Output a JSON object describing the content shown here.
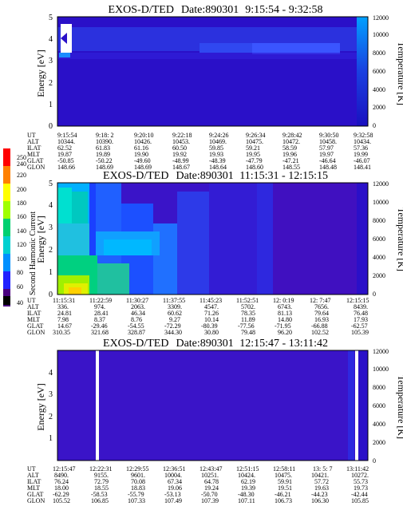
{
  "colors": {
    "scale": [
      "#000000",
      "#4a0080",
      "#2020ff",
      "#00a0ff",
      "#00e0e0",
      "#00d070",
      "#a0ff00",
      "#ffff00",
      "#ffa000",
      "#ff0000"
    ],
    "background_fill": "#2a10c8"
  },
  "colorbar": {
    "label": "Second Harmonic Current",
    "ticks": [
      "40",
      "60",
      "80",
      "100",
      "120",
      "140",
      "160",
      "180",
      "200",
      "220",
      "240",
      "250"
    ]
  },
  "chart_data": [
    {
      "type": "heatmap",
      "title": "EXOS-D/TED",
      "date_label": "Date:890301",
      "time_range": "9:15:54 - 9:32:58",
      "ylabel": "Energy [eV]",
      "ylabel_right": "Temperature [K]",
      "ylim": [
        0,
        5
      ],
      "yticks": [
        "0",
        "1",
        "2",
        "3",
        "4",
        "5"
      ],
      "y2lim": [
        0,
        12000
      ],
      "y2ticks": [
        "0",
        "2000",
        "4000",
        "6000",
        "8000",
        "10000",
        "12000"
      ],
      "row_labels": [
        "UT",
        "ALT",
        "ILAT",
        "MLT",
        "GLAT",
        "GLON"
      ],
      "columns": [
        [
          "9:15:54",
          "10344.",
          "62.52",
          "19.87",
          "-50.85",
          "148.66"
        ],
        [
          "9:18: 2",
          "10390.",
          "61.83",
          "19.89",
          "-50.22",
          "148.69"
        ],
        [
          "9:20:10",
          "10426.",
          "61.16",
          "19.90",
          "-49.60",
          "148.69"
        ],
        [
          "9:22:18",
          "10453.",
          "60.50",
          "19.92",
          "-48.99",
          "148.67"
        ],
        [
          "9:24:26",
          "10469.",
          "59.85",
          "19.93",
          "-48.39",
          "148.64"
        ],
        [
          "9:26:34",
          "10475.",
          "59.21",
          "19.95",
          "-47.79",
          "148.60"
        ],
        [
          "9:28:42",
          "10472.",
          "58.59",
          "19.96",
          "-47.21",
          "148.55"
        ],
        [
          "9:30:50",
          "10458.",
          "57.97",
          "19.97",
          "-46.64",
          "148.48"
        ],
        [
          "9:32:58",
          "10434.",
          "57.36",
          "19.99",
          "-46.07",
          "148.41"
        ]
      ]
    },
    {
      "type": "heatmap",
      "title": "EXOS-D/TED",
      "date_label": "Date:890301",
      "time_range": "11:15:31 - 12:15:15",
      "ylabel": "Energy [eV]",
      "ylabel_right": "Temperature [K]",
      "ylim": [
        0,
        5
      ],
      "yticks": [
        "0",
        "1",
        "2",
        "3",
        "4",
        "5"
      ],
      "y2lim": [
        0,
        12000
      ],
      "y2ticks": [
        "0",
        "2000",
        "4000",
        "6000",
        "8000",
        "10000",
        "12000"
      ],
      "row_labels": [
        "UT",
        "ALT",
        "ILAT",
        "MLT",
        "GLAT",
        "GLON"
      ],
      "columns": [
        [
          "11:15:31",
          "336.",
          "24.81",
          "7.98",
          "14.67",
          "310.35"
        ],
        [
          "11:22:59",
          "974.",
          "28.41",
          "8.37",
          "-29.46",
          "321.68"
        ],
        [
          "11:30:27",
          "2063.",
          "46.34",
          "8.76",
          "-54.55",
          "328.87"
        ],
        [
          "11:37:55",
          "3309.",
          "60.62",
          "9.27",
          "-72.29",
          "344.30"
        ],
        [
          "11:45:23",
          "4547.",
          "71.26",
          "10.14",
          "-80.39",
          "30.80"
        ],
        [
          "11:52:51",
          "5702.",
          "78.35",
          "11.89",
          "-77.56",
          "79.48"
        ],
        [
          "12: 0:19",
          "6743.",
          "81.13",
          "14.80",
          "-71.95",
          "96.20"
        ],
        [
          "12: 7:47",
          "7656.",
          "79.64",
          "16.93",
          "-66.88",
          "102.52"
        ],
        [
          "12:15:15",
          "8439.",
          "76.48",
          "17.93",
          "-62.57",
          "105.39"
        ]
      ]
    },
    {
      "type": "heatmap",
      "title": "EXOS-D/TED",
      "date_label": "Date:890301",
      "time_range": "12:15:47 - 13:11:42",
      "ylabel": "Energy [eV]",
      "ylabel_right": "Temperature [K]",
      "ylim": [
        0,
        5
      ],
      "yticks": [
        "0",
        "1",
        "2",
        "3",
        "4",
        "5"
      ],
      "y2lim": [
        0,
        12000
      ],
      "y2ticks": [
        "0",
        "2000",
        "4000",
        "6000",
        "8000",
        "10000",
        "12000"
      ],
      "row_labels": [
        "UT",
        "ALT",
        "ILAT",
        "MLT",
        "GLAT",
        "GLON"
      ],
      "columns": [
        [
          "12:15:47",
          "8490.",
          "76.24",
          "18.00",
          "-62.29",
          "105.52"
        ],
        [
          "12:22:31",
          "9155.",
          "72.79",
          "18.55",
          "-58.53",
          "106.85"
        ],
        [
          "12:29:55",
          "9601.",
          "70.08",
          "18.83",
          "-55.79",
          "107.33"
        ],
        [
          "12:36:51",
          "10004.",
          "67.34",
          "19.06",
          "-53.13",
          "107.49"
        ],
        [
          "12:43:47",
          "10251.",
          "64.78",
          "19.24",
          "-50.70",
          "107.39"
        ],
        [
          "12:51:15",
          "10424.",
          "62.19",
          "19.39",
          "-48.30",
          "107.11"
        ],
        [
          "12:58:11",
          "10475.",
          "59.91",
          "19.51",
          "-46.21",
          "106.73"
        ],
        [
          "13: 5: 7",
          "10421.",
          "57.72",
          "19.63",
          "-44.23",
          "106.30"
        ],
        [
          "13:11:42",
          "10272.",
          "55.73",
          "19.73",
          "-42.44",
          "105.85"
        ]
      ]
    }
  ]
}
